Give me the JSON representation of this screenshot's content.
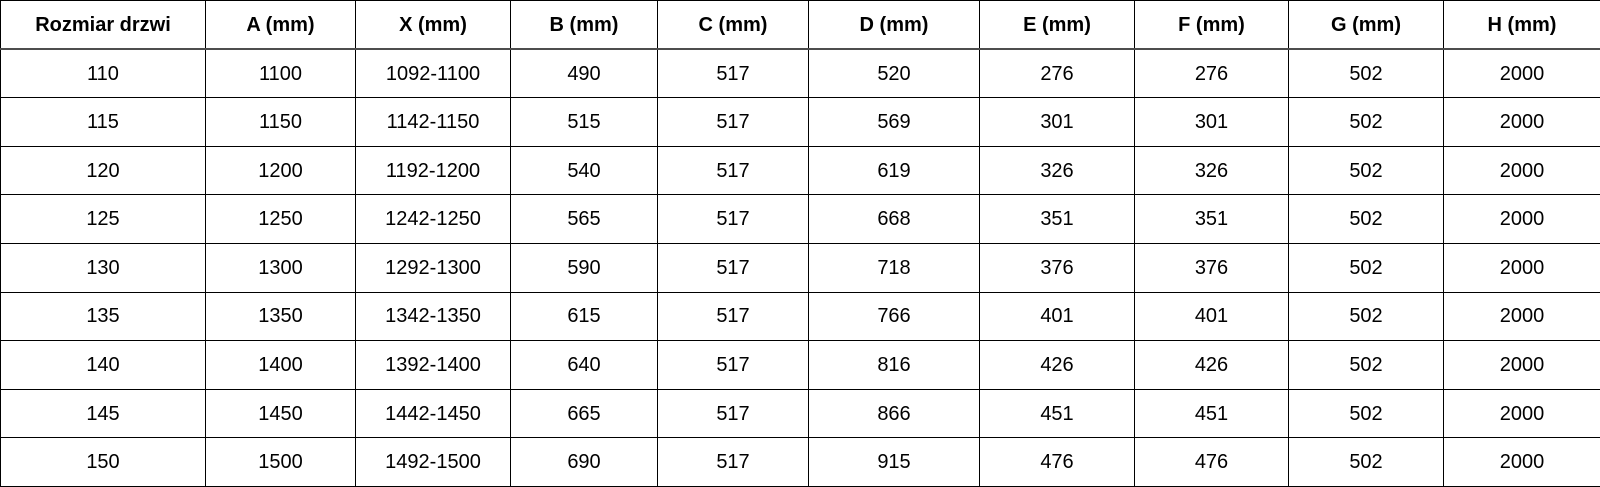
{
  "table": {
    "columns": [
      "Rozmiar drzwi",
      "A (mm)",
      "X (mm)",
      "B (mm)",
      "C (mm)",
      "D (mm)",
      "E (mm)",
      "F (mm)",
      "G (mm)",
      "H (mm)"
    ],
    "rows": [
      [
        "110",
        "1100",
        "1092-1100",
        "490",
        "517",
        "520",
        "276",
        "276",
        "502",
        "2000"
      ],
      [
        "115",
        "1150",
        "1142-1150",
        "515",
        "517",
        "569",
        "301",
        "301",
        "502",
        "2000"
      ],
      [
        "120",
        "1200",
        "1192-1200",
        "540",
        "517",
        "619",
        "326",
        "326",
        "502",
        "2000"
      ],
      [
        "125",
        "1250",
        "1242-1250",
        "565",
        "517",
        "668",
        "351",
        "351",
        "502",
        "2000"
      ],
      [
        "130",
        "1300",
        "1292-1300",
        "590",
        "517",
        "718",
        "376",
        "376",
        "502",
        "2000"
      ],
      [
        "135",
        "1350",
        "1342-1350",
        "615",
        "517",
        "766",
        "401",
        "401",
        "502",
        "2000"
      ],
      [
        "140",
        "1400",
        "1392-1400",
        "640",
        "517",
        "816",
        "426",
        "426",
        "502",
        "2000"
      ],
      [
        "145",
        "1450",
        "1442-1450",
        "665",
        "517",
        "866",
        "451",
        "451",
        "502",
        "2000"
      ],
      [
        "150",
        "1500",
        "1492-1500",
        "690",
        "517",
        "915",
        "476",
        "476",
        "502",
        "2000"
      ]
    ]
  },
  "colors": {
    "background": "#ffffff",
    "text": "#000000",
    "border": "#000000",
    "header_divider": "#4d4d4d"
  }
}
